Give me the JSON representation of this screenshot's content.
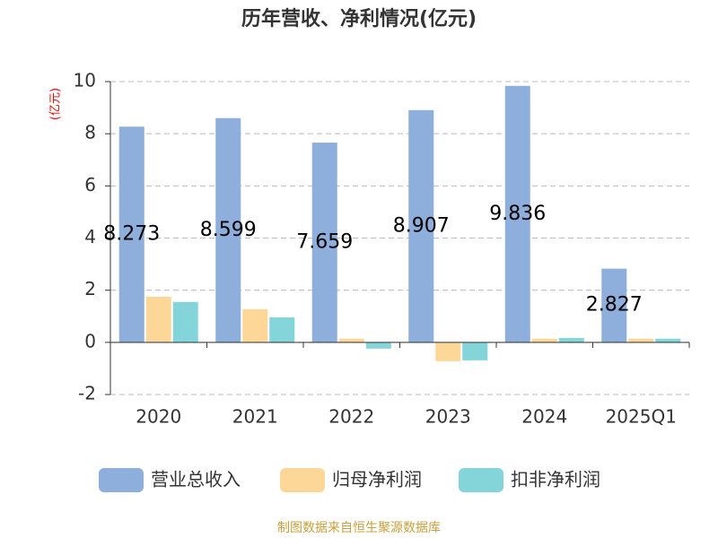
{
  "chart_data": {
    "type": "bar",
    "title": "历年营收、净利情况(亿元)",
    "y_label": "(亿元)",
    "source": "制图数据来自恒生聚源数据库",
    "categories": [
      "2020",
      "2021",
      "2022",
      "2023",
      "2024",
      "2025Q1"
    ],
    "series": [
      {
        "name": "营业总收入",
        "color": "#8eaedb",
        "values": [
          8.273,
          8.599,
          7.659,
          8.907,
          9.836,
          2.827
        ],
        "show_labels": true
      },
      {
        "name": "归母净利润",
        "color": "#fdd797",
        "values": [
          1.75,
          1.27,
          0.14,
          -0.72,
          0.14,
          0.14
        ]
      },
      {
        "name": "扣非净利润",
        "color": "#84d5d9",
        "values": [
          1.55,
          0.96,
          -0.24,
          -0.69,
          0.17,
          0.14
        ]
      }
    ],
    "ylim": [
      -2,
      10
    ],
    "yticks": [
      -2,
      0,
      2,
      4,
      6,
      8,
      10
    ],
    "grid": true
  }
}
